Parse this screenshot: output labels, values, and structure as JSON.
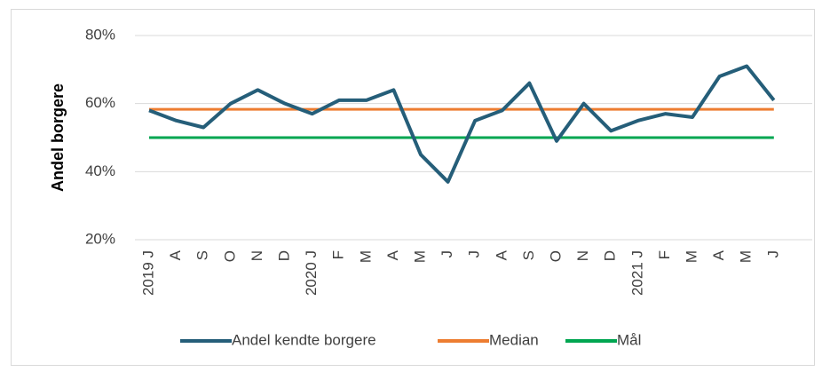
{
  "chart_data": {
    "type": "line",
    "y_label": "Andel borgere",
    "categories": [
      "2019 J",
      "A",
      "S",
      "O",
      "N",
      "D",
      "2020 J",
      "F",
      "M",
      "A",
      "M",
      "J",
      "J",
      "A",
      "S",
      "O",
      "N",
      "D",
      "2021 J",
      "F",
      "M",
      "A",
      "M",
      "J"
    ],
    "series": [
      {
        "name": "Andel kendte borgere",
        "color": "#255e79",
        "values": [
          58,
          55,
          53,
          60,
          64,
          60,
          57,
          61,
          61,
          64,
          45,
          37,
          55,
          58,
          66,
          49,
          60,
          52,
          55,
          57,
          56,
          68,
          71,
          61
        ]
      },
      {
        "name": "Median",
        "color": "#ed7d31",
        "values": [
          58.3,
          58.3,
          58.3,
          58.3,
          58.3,
          58.3,
          58.3,
          58.3,
          58.3,
          58.3,
          58.3,
          58.3,
          58.3,
          58.3,
          58.3,
          58.3,
          58.3,
          58.3,
          58.3,
          58.3,
          58.3,
          58.3,
          58.3,
          58.3
        ]
      },
      {
        "name": "Mål",
        "color": "#00a651",
        "values": [
          50,
          50,
          50,
          50,
          50,
          50,
          50,
          50,
          50,
          50,
          50,
          50,
          50,
          50,
          50,
          50,
          50,
          50,
          50,
          50,
          50,
          50,
          50,
          50
        ]
      }
    ],
    "ylim": [
      20,
      80
    ],
    "yticks": [
      {
        "value": 20,
        "label": "20%"
      },
      {
        "value": 40,
        "label": "40%"
      },
      {
        "value": 60,
        "label": "60%"
      },
      {
        "value": 80,
        "label": "80%"
      }
    ],
    "grid": true
  }
}
